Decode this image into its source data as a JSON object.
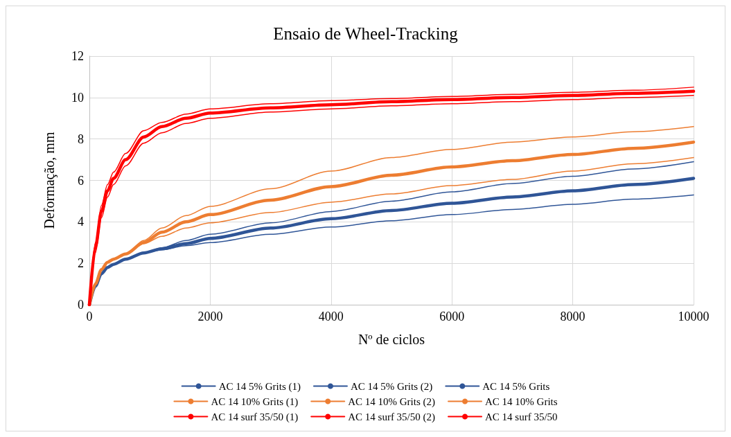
{
  "chart_data": {
    "type": "line",
    "title": "Ensaio de Wheel-Tracking",
    "xlabel": "Nº de ciclos",
    "ylabel": "Deformação, mm",
    "x": [
      0,
      100,
      200,
      300,
      400,
      600,
      900,
      1200,
      1600,
      2000,
      3000,
      4000,
      5000,
      6000,
      7000,
      8000,
      9000,
      10000
    ],
    "series": [
      {
        "name": "AC 14 5% Grits (1)",
        "color": "#2f5597",
        "values": [
          0,
          0.9,
          1.5,
          1.8,
          1.95,
          2.2,
          2.5,
          2.75,
          3.1,
          3.4,
          3.95,
          4.5,
          5.0,
          5.45,
          5.85,
          6.2,
          6.55,
          6.9
        ]
      },
      {
        "name": "AC 14 5% Grits (2)",
        "color": "#2f5597",
        "values": [
          0,
          0.9,
          1.5,
          1.8,
          1.95,
          2.2,
          2.5,
          2.65,
          2.85,
          3.0,
          3.4,
          3.75,
          4.05,
          4.35,
          4.6,
          4.85,
          5.1,
          5.3
        ]
      },
      {
        "name": "AC 14 5% Grits",
        "color": "#2f5597",
        "values": [
          0,
          0.9,
          1.5,
          1.8,
          1.95,
          2.2,
          2.5,
          2.7,
          2.95,
          3.2,
          3.7,
          4.15,
          4.55,
          4.9,
          5.2,
          5.5,
          5.8,
          6.1
        ]
      },
      {
        "name": "AC 14 10% Grits (1)",
        "color": "#ed7d31",
        "values": [
          0,
          1.0,
          1.7,
          2.05,
          2.2,
          2.45,
          3.1,
          3.7,
          4.3,
          4.75,
          5.6,
          6.45,
          7.1,
          7.5,
          7.85,
          8.1,
          8.35,
          8.6
        ]
      },
      {
        "name": "AC 14 10% Grits (2)",
        "color": "#ed7d31",
        "values": [
          0,
          1.0,
          1.7,
          2.05,
          2.2,
          2.45,
          2.95,
          3.3,
          3.7,
          3.95,
          4.45,
          4.95,
          5.35,
          5.75,
          6.05,
          6.45,
          6.8,
          7.1
        ]
      },
      {
        "name": "AC 14 10% Grits",
        "color": "#ed7d31",
        "values": [
          0,
          1.0,
          1.7,
          2.05,
          2.2,
          2.45,
          3.0,
          3.5,
          4.0,
          4.35,
          5.05,
          5.7,
          6.25,
          6.65,
          6.95,
          7.25,
          7.55,
          7.85
        ]
      },
      {
        "name": "AC 14 surf 35/50 (1)",
        "color": "#ff0000",
        "values": [
          0,
          3.0,
          4.8,
          5.8,
          6.4,
          7.3,
          8.4,
          8.8,
          9.2,
          9.45,
          9.7,
          9.85,
          9.95,
          10.05,
          10.15,
          10.25,
          10.35,
          10.5
        ]
      },
      {
        "name": "AC 14 surf 35/50 (2)",
        "color": "#ff0000",
        "values": [
          0,
          2.5,
          4.2,
          5.2,
          5.8,
          6.7,
          7.8,
          8.3,
          8.75,
          9.0,
          9.3,
          9.45,
          9.6,
          9.7,
          9.8,
          9.9,
          10.0,
          10.1
        ]
      },
      {
        "name": "AC 14 surf 35/50",
        "color": "#ff0000",
        "values": [
          0,
          2.8,
          4.5,
          5.5,
          6.1,
          7.0,
          8.1,
          8.6,
          9.0,
          9.25,
          9.5,
          9.65,
          9.8,
          9.9,
          10.0,
          10.1,
          10.2,
          10.3
        ]
      }
    ],
    "xlim": [
      0,
      10000
    ],
    "xticks": [
      0,
      2000,
      4000,
      6000,
      8000,
      10000
    ],
    "ylim": [
      0,
      12
    ],
    "yticks": [
      0,
      2,
      4,
      6,
      8,
      10,
      12
    ],
    "grid": true,
    "legend": "bottom",
    "marker": "none",
    "line_style": "solid"
  }
}
